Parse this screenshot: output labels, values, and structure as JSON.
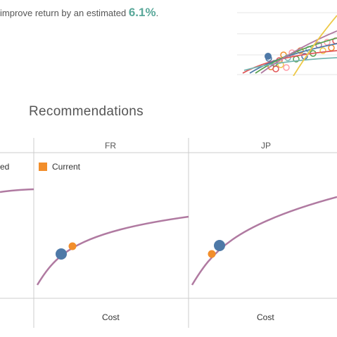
{
  "headline": {
    "text": "improve return by an estimated ",
    "value": "6.1%",
    "suffix": "."
  },
  "section_title": "Recommendations",
  "panels": [
    {
      "header": "FR",
      "axis_label": "Cost",
      "legend": "Current"
    },
    {
      "header": "JP",
      "axis_label": "Cost"
    }
  ],
  "left_panel_cut_label": "ed",
  "colors": {
    "curve": "#b07aa1",
    "recommended": "#4e79a7",
    "current": "#f28e2b",
    "accent": "#5aa89a",
    "grid": "#cccccc"
  }
}
